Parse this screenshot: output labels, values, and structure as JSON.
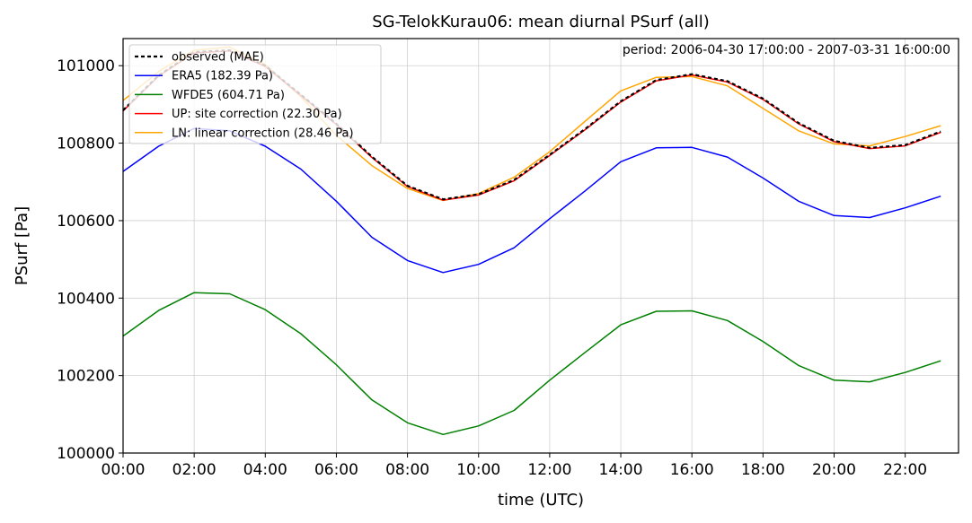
{
  "chart_data": {
    "type": "line",
    "title": "SG-TelokKurau06: mean diurnal PSurf (all)",
    "annotation": "period: 2006-04-30 17:00:00 - 2007-03-31 16:00:00",
    "xlabel": "time (UTC)",
    "ylabel": "PSurf [Pa]",
    "xlim": [
      0,
      23.5
    ],
    "ylim": [
      100000,
      101070
    ],
    "grid": true,
    "legend_position": "top-left",
    "x": [
      0,
      1,
      2,
      3,
      4,
      5,
      6,
      7,
      8,
      9,
      10,
      11,
      12,
      13,
      14,
      15,
      16,
      17,
      18,
      19,
      20,
      21,
      22,
      23
    ],
    "xticks": [
      0,
      2,
      4,
      6,
      8,
      10,
      12,
      14,
      16,
      18,
      20,
      22
    ],
    "xtick_labels": [
      "00:00",
      "02:00",
      "04:00",
      "06:00",
      "08:00",
      "10:00",
      "12:00",
      "14:00",
      "16:00",
      "18:00",
      "20:00",
      "22:00"
    ],
    "yticks": [
      100000,
      100200,
      100400,
      100600,
      100800,
      101000
    ],
    "ytick_labels": [
      "100000",
      "100200",
      "100400",
      "100600",
      "100800",
      "101000"
    ],
    "series": [
      {
        "name": "observed (MAE)",
        "color": "#000000",
        "dash": true,
        "values": [
          100885,
          100975,
          101035,
          101040,
          101000,
          100925,
          100850,
          100765,
          100690,
          100655,
          100668,
          100705,
          100770,
          100837,
          100908,
          100963,
          100978,
          100960,
          100915,
          100852,
          100806,
          100788,
          100795,
          100830
        ]
      },
      {
        "name": "ERA5 (182.39 Pa)",
        "color": "#0000ff",
        "dash": false,
        "values": [
          100727,
          100792,
          100838,
          100832,
          100792,
          100733,
          100650,
          100557,
          100497,
          100466,
          100487,
          100530,
          100605,
          100677,
          100752,
          100788,
          100789,
          100764,
          100710,
          100650,
          100613,
          100608,
          100633,
          100663
        ]
      },
      {
        "name": "WFDE5 (604.71 Pa)",
        "color": "#008000",
        "dash": false,
        "values": [
          100302,
          100368,
          100414,
          100411,
          100370,
          100308,
          100228,
          100137,
          100078,
          100048,
          100070,
          100110,
          100188,
          100260,
          100331,
          100366,
          100367,
          100342,
          100288,
          100226,
          100188,
          100184,
          100208,
          100238
        ]
      },
      {
        "name": "UP: site correction (22.30 Pa)",
        "color": "#ff0000",
        "dash": false,
        "values": [
          100883,
          100973,
          101033,
          101038,
          100998,
          100923,
          100848,
          100763,
          100688,
          100653,
          100666,
          100703,
          100768,
          100835,
          100906,
          100961,
          100976,
          100958,
          100913,
          100850,
          100804,
          100786,
          100793,
          100828
        ]
      },
      {
        "name": "LN: linear correction (28.46 Pa)",
        "color": "#ffa500",
        "dash": false,
        "values": [
          100910,
          100985,
          101040,
          101048,
          101003,
          100920,
          100820,
          100742,
          100683,
          100652,
          100670,
          100712,
          100778,
          100857,
          100935,
          100970,
          100972,
          100948,
          100890,
          100832,
          100798,
          100793,
          100817,
          100845
        ]
      }
    ]
  }
}
